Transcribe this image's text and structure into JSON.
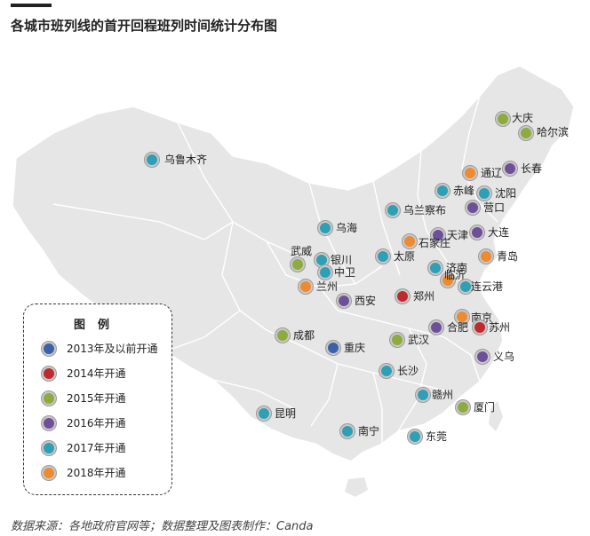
{
  "title": "各城市班列线的首开回程班列时间统计分布图",
  "source": "数据来源：各地政府官网等；数据整理及图表制作：Canda",
  "legend": {
    "title": "图例",
    "items": [
      {
        "label": "2013年及以前开通",
        "color": "#3b62a8"
      },
      {
        "label": "2014年开通",
        "color": "#c0292d"
      },
      {
        "label": "2015年开通",
        "color": "#8dab3f"
      },
      {
        "label": "2016年开通",
        "color": "#6e4f9a"
      },
      {
        "label": "2017年开通",
        "color": "#2e9fb5"
      },
      {
        "label": "2018年开通",
        "color": "#ee8a2f"
      }
    ]
  },
  "cities": [
    {
      "name": "大庆",
      "year": 2015
    },
    {
      "name": "哈尔滨",
      "year": 2015
    },
    {
      "name": "乌鲁木齐",
      "year": 2017
    },
    {
      "name": "通辽",
      "year": 2018
    },
    {
      "name": "长春",
      "year": 2016
    },
    {
      "name": "赤峰",
      "year": 2017
    },
    {
      "name": "沈阳",
      "year": 2017
    },
    {
      "name": "乌兰察布",
      "year": 2017
    },
    {
      "name": "营口",
      "year": 2016
    },
    {
      "name": "乌海",
      "year": 2017
    },
    {
      "name": "天津",
      "year": 2016
    },
    {
      "name": "大连",
      "year": 2016
    },
    {
      "name": "石家庄",
      "year": 2018
    },
    {
      "name": "武威",
      "year": 2015
    },
    {
      "name": "太原",
      "year": 2017
    },
    {
      "name": "青岛",
      "year": 2018
    },
    {
      "name": "银川",
      "year": 2017
    },
    {
      "name": "中卫",
      "year": 2017
    },
    {
      "name": "济南",
      "year": 2017
    },
    {
      "name": "临沂",
      "year": 2018
    },
    {
      "name": "兰州",
      "year": 2018
    },
    {
      "name": "连云港",
      "year": 2017
    },
    {
      "name": "郑州",
      "year": 2014
    },
    {
      "name": "西安",
      "year": 2016
    },
    {
      "name": "南京",
      "year": 2018
    },
    {
      "name": "合肥",
      "year": 2016
    },
    {
      "name": "苏州",
      "year": 2014
    },
    {
      "name": "成都",
      "year": 2015
    },
    {
      "name": "重庆",
      "year": 2013
    },
    {
      "name": "武汉",
      "year": 2015
    },
    {
      "name": "义乌",
      "year": 2016
    },
    {
      "name": "长沙",
      "year": 2017
    },
    {
      "name": "赣州",
      "year": 2017
    },
    {
      "name": "厦门",
      "year": 2015
    },
    {
      "name": "昆明",
      "year": 2017
    },
    {
      "name": "南宁",
      "year": 2017
    },
    {
      "name": "东莞",
      "year": 2017
    }
  ]
}
